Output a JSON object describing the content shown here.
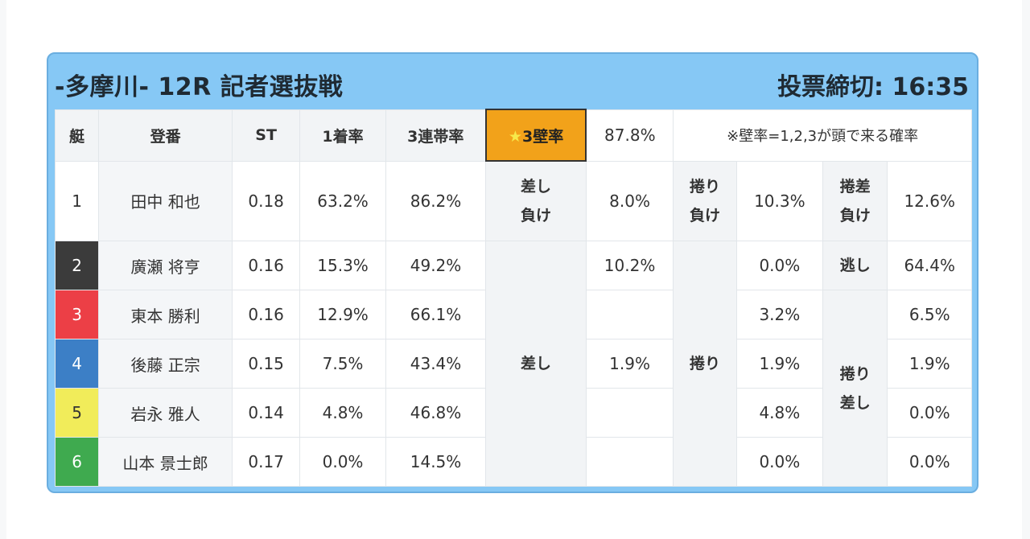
{
  "header": {
    "title": "-多摩川- 12R 記者選抜戦",
    "deadline": "投票締切: 16:35"
  },
  "columns": {
    "boat": "艇",
    "reg": "登番",
    "st": "ST",
    "first_rate": "1着率",
    "third_rate": "3連帯率",
    "wall_star": "★",
    "wall_label": "3壁率",
    "wall_value": "87.8%",
    "note": "※壁率=1,2,3が頭で来る確率"
  },
  "rows": [
    {
      "lane": "1",
      "name": "田中 和也",
      "st": "0.18",
      "first": "63.2%",
      "third": "86.2%"
    },
    {
      "lane": "2",
      "name": "廣瀬 将亨",
      "st": "0.16",
      "first": "15.3%",
      "third": "49.2%"
    },
    {
      "lane": "3",
      "name": "東本 勝利",
      "st": "0.16",
      "first": "12.9%",
      "third": "66.1%"
    },
    {
      "lane": "4",
      "name": "後藤 正宗",
      "st": "0.15",
      "first": "7.5%",
      "third": "43.4%"
    },
    {
      "lane": "5",
      "name": "岩永 雅人",
      "st": "0.14",
      "first": "4.8%",
      "third": "46.8%"
    },
    {
      "lane": "6",
      "name": "山本 景士郎",
      "st": "0.17",
      "first": "0.0%",
      "third": "14.5%"
    }
  ],
  "lane_colors": {
    "1": "#ffffff",
    "2": "#3b3b3b",
    "3": "#ec3f46",
    "4": "#3c7fc6",
    "5": "#f1ec5a",
    "6": "#3faa4f"
  },
  "patterns": {
    "sashi_make_l1": "差し",
    "sashi_make_l2": "負け",
    "sashi_make_val": "8.0%",
    "makuri_make_l1": "捲り",
    "makuri_make_l2": "負け",
    "makuri_make_val": "10.3%",
    "makurisashi_make_l1": "捲差",
    "makurisashi_make_l2": "負け",
    "makurisashi_make_val": "12.6%",
    "sashi": "差し",
    "makuri": "捲り",
    "nige": "逃し",
    "makurisashi_l1": "捲り",
    "makurisashi_l2": "差し",
    "sashi_vals": {
      "r2": "10.2%",
      "r4": "1.9%"
    },
    "makuri_vals": [
      "0.0%",
      "3.2%",
      "1.9%",
      "4.8%",
      "0.0%"
    ],
    "nige_val": "64.4%",
    "makurisashi_vals": [
      "6.5%",
      "1.9%",
      "0.0%",
      "0.0%"
    ]
  }
}
